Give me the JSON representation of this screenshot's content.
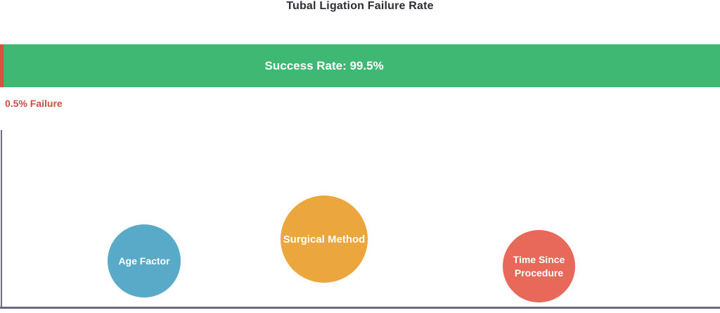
{
  "title": "Tubal Ligation Failure Rate",
  "bar": {
    "success_label": "Success Rate: 99.5%",
    "success_value": 99.5,
    "failure_value": 0.5,
    "failure_annotation": "0.5% Failure"
  },
  "bubbles": [
    {
      "label": "Age Factor",
      "color": "#58aac8"
    },
    {
      "label": "Surgical Method",
      "color": "#eba73e"
    },
    {
      "label": "Time Since Procedure",
      "color": "#e8695a"
    }
  ],
  "colors": {
    "success_green": "#3eb873",
    "failure_red": "#d4543f",
    "failure_text_red": "#d14c44",
    "axis_gray": "#6a6a80",
    "title_text": "#2e2e38",
    "bubble_text": "#ffffff"
  },
  "chart_data": [
    {
      "type": "bar",
      "orientation": "horizontal-stacked",
      "title": "Tubal Ligation Failure Rate",
      "categories": [
        "Success Rate",
        "Failure Rate"
      ],
      "values": [
        99.5,
        0.5
      ],
      "unit": "%",
      "colors": [
        "#3eb873",
        "#d4543f"
      ],
      "annotations": [
        "Success Rate: 99.5%",
        "0.5% Failure"
      ],
      "xlim": [
        0,
        100
      ],
      "grid": false,
      "legend": false
    },
    {
      "type": "scatter",
      "title": "",
      "xlabel": "",
      "ylabel": "",
      "axis_ticks": "none",
      "grid": false,
      "legend": false,
      "points": [
        {
          "label": "Age Factor",
          "x_pct": 20.0,
          "y_pct": 73.2,
          "radius_px": 52,
          "color": "#58aac8"
        },
        {
          "label": "Surgical Method",
          "x_pct": 45.0,
          "y_pct": 61.0,
          "radius_px": 62,
          "color": "#eba73e"
        },
        {
          "label": "Time Since Procedure",
          "x_pct": 74.9,
          "y_pct": 76.4,
          "radius_px": 51,
          "color": "#e8695a"
        }
      ]
    }
  ]
}
